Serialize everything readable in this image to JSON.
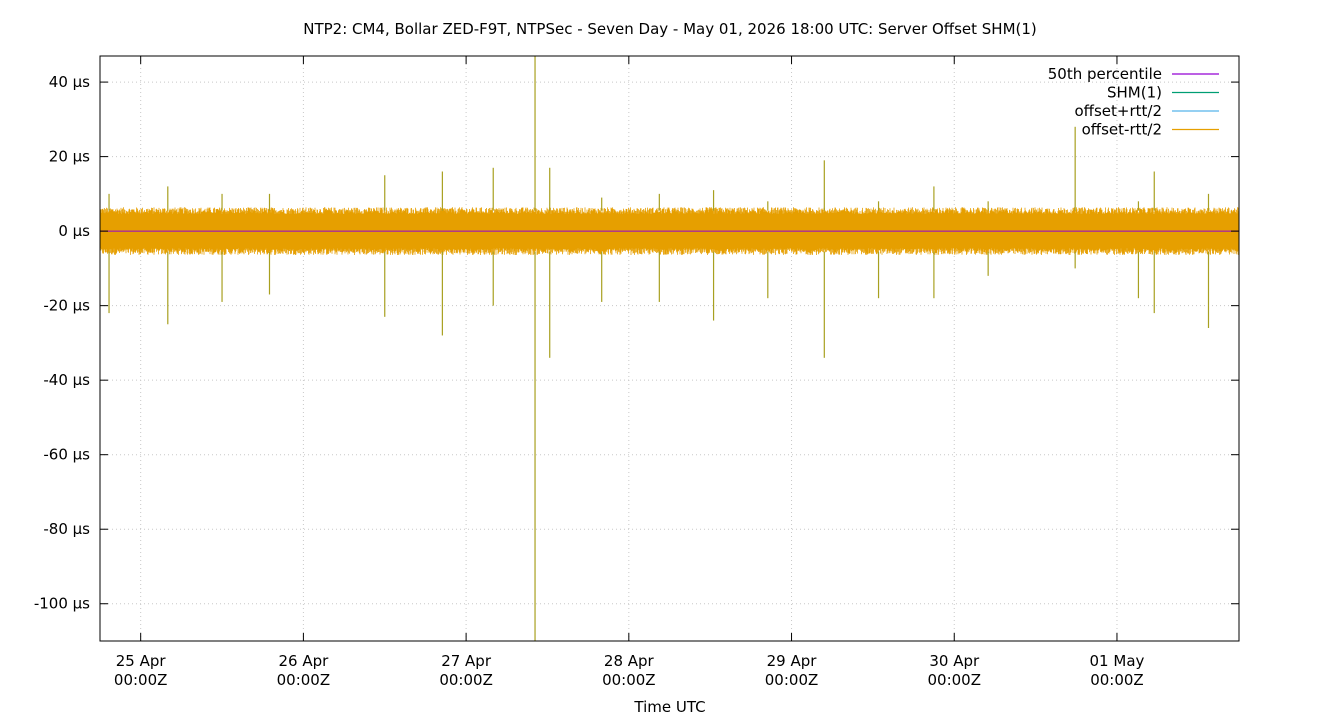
{
  "chart_data": {
    "type": "line",
    "title": "NTP2: CM4, Bollar ZED-F9T, NTPSec - Seven Day - May 01, 2026 18:00 UTC: Server Offset SHM(1)",
    "xlabel": "Time UTC",
    "ylabel": "",
    "x_range": [
      "2026-04-24 18:00Z",
      "2026-05-01 18:00Z"
    ],
    "ylim": [
      -110,
      47
    ],
    "y_ticks": [
      {
        "value": 40,
        "label": "40 µs"
      },
      {
        "value": 20,
        "label": "20 µs"
      },
      {
        "value": 0,
        "label": "0 µs"
      },
      {
        "value": -20,
        "label": "-20 µs"
      },
      {
        "value": -40,
        "label": "-40 µs"
      },
      {
        "value": -60,
        "label": "-60 µs"
      },
      {
        "value": -80,
        "label": "-80 µs"
      },
      {
        "value": -100,
        "label": "-100 µs"
      }
    ],
    "x_ticks": [
      {
        "value": "2026-04-25 00:00Z",
        "day": "25 Apr",
        "time": "00:00Z"
      },
      {
        "value": "2026-04-26 00:00Z",
        "day": "26 Apr",
        "time": "00:00Z"
      },
      {
        "value": "2026-04-27 00:00Z",
        "day": "27 Apr",
        "time": "00:00Z"
      },
      {
        "value": "2026-04-28 00:00Z",
        "day": "28 Apr",
        "time": "00:00Z"
      },
      {
        "value": "2026-04-29 00:00Z",
        "day": "29 Apr",
        "time": "00:00Z"
      },
      {
        "value": "2026-04-30 00:00Z",
        "day": "30 Apr",
        "time": "00:00Z"
      },
      {
        "value": "2026-05-01 00:00Z",
        "day": "01 May",
        "time": "00:00Z"
      }
    ],
    "grid": true,
    "legend_position": "top-right",
    "series": [
      {
        "name": "50th percentile",
        "color": "#9400d3",
        "values": [
          0
        ]
      },
      {
        "name": "SHM(1)",
        "color": "#009e73",
        "values": []
      },
      {
        "name": "offset+rtt/2",
        "color": "#56b4e9",
        "values": []
      },
      {
        "name": "offset-rtt/2",
        "color": "#e69f00",
        "values": []
      }
    ],
    "noise_band": {
      "upper": 5.5,
      "lower": -5.5
    },
    "spikes": [
      {
        "x": "2026-04-24 19:20Z",
        "high": 10,
        "low": -22
      },
      {
        "x": "2026-04-25 04:00Z",
        "high": 12,
        "low": -25
      },
      {
        "x": "2026-04-25 12:00Z",
        "high": 10,
        "low": -19
      },
      {
        "x": "2026-04-25 19:00Z",
        "high": 10,
        "low": -17
      },
      {
        "x": "2026-04-26 12:00Z",
        "high": 15,
        "low": -23
      },
      {
        "x": "2026-04-26 20:30Z",
        "high": 16,
        "low": -28
      },
      {
        "x": "2026-04-27 04:00Z",
        "high": 17,
        "low": -20
      },
      {
        "x": "2026-04-27 10:10Z",
        "high": 47,
        "low": -110
      },
      {
        "x": "2026-04-27 12:20Z",
        "high": 17,
        "low": -34
      },
      {
        "x": "2026-04-27 20:00Z",
        "high": 9,
        "low": -19
      },
      {
        "x": "2026-04-28 04:30Z",
        "high": 10,
        "low": -19
      },
      {
        "x": "2026-04-28 12:30Z",
        "high": 11,
        "low": -24
      },
      {
        "x": "2026-04-28 20:30Z",
        "high": 8,
        "low": -18
      },
      {
        "x": "2026-04-29 04:50Z",
        "high": 19,
        "low": -34
      },
      {
        "x": "2026-04-29 12:50Z",
        "high": 8,
        "low": -18
      },
      {
        "x": "2026-04-29 21:00Z",
        "high": 12,
        "low": -18
      },
      {
        "x": "2026-04-30 05:00Z",
        "high": 8,
        "low": -12
      },
      {
        "x": "2026-04-30 17:50Z",
        "high": 28,
        "low": -10
      },
      {
        "x": "2026-05-01 03:10Z",
        "high": 8,
        "low": -18
      },
      {
        "x": "2026-05-01 05:30Z",
        "high": 16,
        "low": -22
      },
      {
        "x": "2026-05-01 13:30Z",
        "high": 10,
        "low": -26
      }
    ]
  }
}
